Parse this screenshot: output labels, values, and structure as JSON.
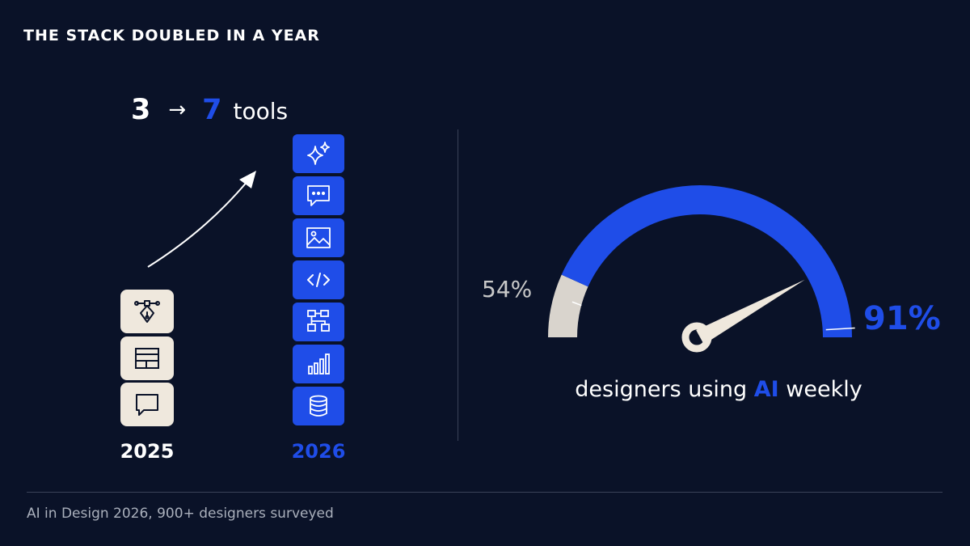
{
  "title": "THE STACK DOUBLED IN A YEAR",
  "headline": {
    "from": "3",
    "arrow": "→",
    "to": "7",
    "unit": "tools"
  },
  "stack": {
    "before": {
      "year": "2025",
      "count": 3,
      "icons": [
        "pen-tool-icon",
        "layout-icon",
        "message-icon"
      ]
    },
    "after": {
      "year": "2026",
      "count": 7,
      "icons": [
        "sparkles-icon",
        "chat-dots-icon",
        "image-icon",
        "code-icon",
        "flowchart-icon",
        "bar-chart-icon",
        "database-icon"
      ]
    }
  },
  "chart_data": {
    "type": "gauge",
    "min": 0,
    "max": 100,
    "start_value": 54,
    "end_value": 91,
    "start_label": "54%",
    "end_label": "91%",
    "caption": {
      "pre": "designers using ",
      "highlight": "AI",
      "post": " weekly"
    }
  },
  "colors": {
    "accent": "#1f4de8",
    "muted": "#d9d4cd",
    "background": "#0a1228"
  },
  "footnote": "AI in Design 2026, 900+ designers surveyed"
}
